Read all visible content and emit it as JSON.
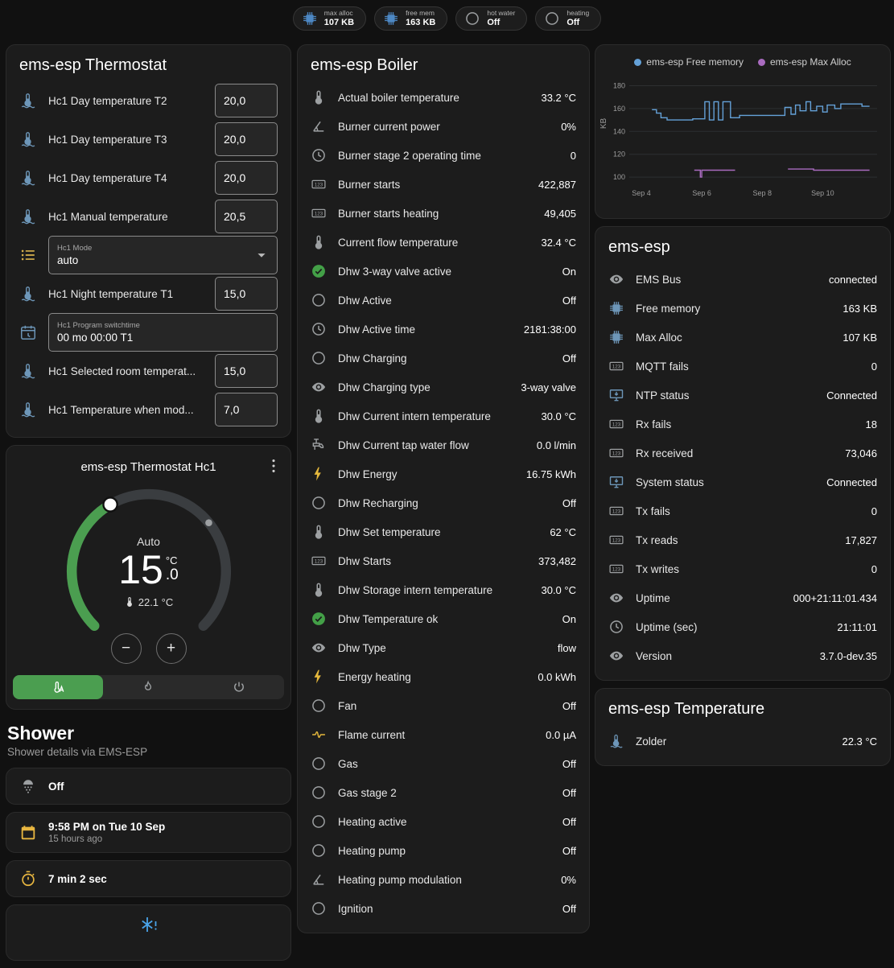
{
  "header": {
    "badges": [
      {
        "icon": "chip-icon",
        "icon_color": "#4d88c4",
        "label": "max alloc",
        "value": "107 KB"
      },
      {
        "icon": "chip-icon",
        "icon_color": "#4d88c4",
        "label": "free mem",
        "value": "163 KB"
      },
      {
        "icon": "circle-outline-icon",
        "icon_color": "#9da0a2",
        "label": "hot water",
        "value": "Off"
      },
      {
        "icon": "circle-outline-icon",
        "icon_color": "#9da0a2",
        "label": "heating",
        "value": "Off"
      }
    ]
  },
  "thermostat": {
    "title": "ems-esp Thermostat",
    "rows": [
      {
        "control": "input",
        "icon": "thermometer-water-icon",
        "icon_color": "#6d96b8",
        "label": "Hc1 Day temperature T2",
        "value": "20,0"
      },
      {
        "control": "input",
        "icon": "thermometer-water-icon",
        "icon_color": "#6d96b8",
        "label": "Hc1 Day temperature T3",
        "value": "20,0"
      },
      {
        "control": "input",
        "icon": "thermometer-water-icon",
        "icon_color": "#6d96b8",
        "label": "Hc1 Day temperature T4",
        "value": "20,0"
      },
      {
        "control": "input",
        "icon": "thermometer-water-icon",
        "icon_color": "#6d96b8",
        "label": "Hc1 Manual temperature",
        "value": "20,5"
      },
      {
        "control": "select",
        "icon": "list-icon",
        "icon_color": "#d8b14c",
        "label": "Hc1 Mode",
        "value": "auto"
      },
      {
        "control": "input",
        "icon": "thermometer-water-icon",
        "icon_color": "#6d96b8",
        "label": "Hc1 Night temperature T1",
        "value": "15,0"
      },
      {
        "control": "text",
        "icon": "program-icon",
        "icon_color": "#6d96b8",
        "label": "Hc1 Program switchtime",
        "value": "00 mo 00:00 T1"
      },
      {
        "control": "input",
        "icon": "thermometer-water-icon",
        "icon_color": "#6d96b8",
        "label": "Hc1 Selected room temperat...",
        "value": "15,0"
      },
      {
        "control": "input",
        "icon": "thermometer-water-icon",
        "icon_color": "#6d96b8",
        "label": "Hc1 Temperature when mod...",
        "value": "7,0"
      }
    ]
  },
  "thermostat_hc1": {
    "title": "ems-esp Thermostat Hc1",
    "mode": "Auto",
    "temp_int": "15",
    "temp_dec": ".0",
    "temp_unit": "°C",
    "current": "22.1 °C"
  },
  "shower": {
    "heading": "Shower",
    "subtitle": "Shower details via EMS-ESP",
    "state": "Off",
    "last_time": "9:58 PM on Tue 10 Sep",
    "last_time_relative": "15 hours ago",
    "duration": "7 min 2 sec"
  },
  "boiler": {
    "title": "ems-esp Boiler",
    "rows": [
      {
        "icon": "thermometer-icon",
        "label": "Actual boiler temperature",
        "value": "33.2 °C"
      },
      {
        "icon": "angle-icon",
        "label": "Burner current power",
        "value": "0%"
      },
      {
        "icon": "clock-icon",
        "label": "Burner stage 2 operating time",
        "value": "0"
      },
      {
        "icon": "counter-icon",
        "label": "Burner starts",
        "value": "422,887"
      },
      {
        "icon": "counter-icon",
        "label": "Burner starts heating",
        "value": "49,405"
      },
      {
        "icon": "thermometer-icon",
        "label": "Current flow temperature",
        "value": "32.4 °C"
      },
      {
        "icon": "check-circle-icon",
        "icon_color": "#43a047",
        "label": "Dhw 3-way valve active",
        "value": "On"
      },
      {
        "icon": "circle-outline-icon",
        "label": "Dhw Active",
        "value": "Off"
      },
      {
        "icon": "clock-icon",
        "label": "Dhw Active time",
        "value": "2181:38:00"
      },
      {
        "icon": "circle-outline-icon",
        "label": "Dhw Charging",
        "value": "Off"
      },
      {
        "icon": "eye-icon",
        "label": "Dhw Charging type",
        "value": "3-way valve"
      },
      {
        "icon": "thermometer-icon",
        "label": "Dhw Current intern temperature",
        "value": "30.0 °C"
      },
      {
        "icon": "water-pump-icon",
        "label": "Dhw Current tap water flow",
        "value": "0.0 l/min"
      },
      {
        "icon": "flash-icon",
        "icon_color": "#e5b83c",
        "label": "Dhw Energy",
        "value": "16.75 kWh"
      },
      {
        "icon": "circle-outline-icon",
        "label": "Dhw Recharging",
        "value": "Off"
      },
      {
        "icon": "thermometer-icon",
        "label": "Dhw Set temperature",
        "value": "62 °C"
      },
      {
        "icon": "counter-icon",
        "label": "Dhw Starts",
        "value": "373,482"
      },
      {
        "icon": "thermometer-icon",
        "label": "Dhw Storage intern temperature",
        "value": "30.0 °C"
      },
      {
        "icon": "check-circle-icon",
        "icon_color": "#43a047",
        "label": "Dhw Temperature ok",
        "value": "On"
      },
      {
        "icon": "eye-icon",
        "label": "Dhw Type",
        "value": "flow"
      },
      {
        "icon": "flash-icon",
        "icon_color": "#e5b83c",
        "label": "Energy heating",
        "value": "0.0 kWh"
      },
      {
        "icon": "circle-outline-icon",
        "label": "Fan",
        "value": "Off"
      },
      {
        "icon": "current-icon",
        "icon_color": "#e5b83c",
        "label": "Flame current",
        "value": "0.0 µA"
      },
      {
        "icon": "circle-outline-icon",
        "label": "Gas",
        "value": "Off"
      },
      {
        "icon": "circle-outline-icon",
        "label": "Gas stage 2",
        "value": "Off"
      },
      {
        "icon": "circle-outline-icon",
        "label": "Heating active",
        "value": "Off"
      },
      {
        "icon": "circle-outline-icon",
        "label": "Heating pump",
        "value": "Off"
      },
      {
        "icon": "angle-icon",
        "label": "Heating pump modulation",
        "value": "0%"
      },
      {
        "icon": "circle-outline-icon",
        "label": "Ignition",
        "value": "Off"
      }
    ]
  },
  "ems": {
    "title": "ems-esp",
    "rows": [
      {
        "icon": "eye-icon",
        "label": "EMS Bus",
        "value": "connected"
      },
      {
        "icon": "chip-icon",
        "icon_color": "#6d96b8",
        "label": "Free memory",
        "value": "163 KB"
      },
      {
        "icon": "chip-icon",
        "icon_color": "#6d96b8",
        "label": "Max Alloc",
        "value": "107 KB"
      },
      {
        "icon": "counter-icon",
        "label": "MQTT fails",
        "value": "0"
      },
      {
        "icon": "monitor-icon",
        "icon_color": "#6d96b8",
        "label": "NTP status",
        "value": "Connected"
      },
      {
        "icon": "counter-icon",
        "label": "Rx fails",
        "value": "18"
      },
      {
        "icon": "counter-icon",
        "label": "Rx received",
        "value": "73,046"
      },
      {
        "icon": "monitor-icon",
        "icon_color": "#6d96b8",
        "label": "System status",
        "value": "Connected"
      },
      {
        "icon": "counter-icon",
        "label": "Tx fails",
        "value": "0"
      },
      {
        "icon": "counter-icon",
        "label": "Tx reads",
        "value": "17,827"
      },
      {
        "icon": "counter-icon",
        "label": "Tx writes",
        "value": "0"
      },
      {
        "icon": "eye-icon",
        "label": "Uptime",
        "value": "000+21:11:01.434"
      },
      {
        "icon": "clock-icon",
        "label": "Uptime (sec)",
        "value": "21:11:01"
      },
      {
        "icon": "eye-icon",
        "label": "Version",
        "value": "3.7.0-dev.35"
      }
    ]
  },
  "temperature": {
    "title": "ems-esp Temperature",
    "rows": [
      {
        "icon": "thermometer-water-icon",
        "icon_color": "#6d96b8",
        "label": "Zolder",
        "value": "22.3 °C"
      }
    ]
  },
  "chart_data": {
    "type": "line",
    "title": "",
    "xlabel": "",
    "ylabel": "KB",
    "grid": true,
    "legend_position": "top",
    "xlim": [
      3.6,
      11.8
    ],
    "ylim": [
      93,
      186
    ],
    "yticks": [
      100,
      120,
      140,
      160,
      180
    ],
    "xticks": [
      {
        "v": 4,
        "label": "Sep 4"
      },
      {
        "v": 6,
        "label": "Sep 6"
      },
      {
        "v": 8,
        "label": "Sep 8"
      },
      {
        "v": 10,
        "label": "Sep 10"
      }
    ],
    "series": [
      {
        "name": "ems-esp Free memory",
        "color": "#64a1d8",
        "segments": [
          [
            [
              4.35,
              159
            ],
            [
              4.5,
              159
            ],
            [
              4.5,
              156
            ],
            [
              4.65,
              156
            ],
            [
              4.65,
              152
            ],
            [
              4.85,
              152
            ],
            [
              4.85,
              150
            ],
            [
              5.7,
              150
            ],
            [
              5.7,
              151
            ],
            [
              6.1,
              151
            ],
            [
              6.1,
              166
            ],
            [
              6.25,
              166
            ],
            [
              6.25,
              150
            ],
            [
              6.4,
              150
            ],
            [
              6.4,
              166
            ],
            [
              6.55,
              166
            ],
            [
              6.55,
              150
            ],
            [
              6.7,
              150
            ],
            [
              6.7,
              166
            ],
            [
              6.95,
              166
            ],
            [
              6.95,
              152
            ],
            [
              7.25,
              152
            ],
            [
              7.25,
              154
            ],
            [
              8.75,
              154
            ],
            [
              8.75,
              161
            ],
            [
              8.95,
              161
            ],
            [
              8.95,
              155
            ],
            [
              9.1,
              155
            ],
            [
              9.1,
              163
            ],
            [
              9.25,
              163
            ],
            [
              9.25,
              158
            ],
            [
              9.45,
              158
            ],
            [
              9.45,
              166
            ],
            [
              9.6,
              166
            ],
            [
              9.6,
              158
            ],
            [
              9.8,
              158
            ],
            [
              9.8,
              162
            ],
            [
              10.0,
              162
            ],
            [
              10.0,
              157
            ],
            [
              10.15,
              157
            ],
            [
              10.15,
              163
            ],
            [
              10.4,
              163
            ],
            [
              10.4,
              160
            ],
            [
              10.6,
              160
            ],
            [
              10.6,
              164
            ],
            [
              11.3,
              164
            ],
            [
              11.3,
              162
            ],
            [
              11.55,
              162
            ]
          ]
        ]
      },
      {
        "name": "ems-esp Max Alloc",
        "color": "#a96bbf",
        "segments": [
          [
            [
              5.75,
              106
            ],
            [
              5.95,
              106
            ],
            [
              5.95,
              100
            ],
            [
              6.0,
              100
            ],
            [
              6.0,
              106
            ],
            [
              7.1,
              106
            ]
          ],
          [
            [
              8.85,
              107
            ],
            [
              9.7,
              107
            ],
            [
              9.7,
              106
            ],
            [
              11.55,
              106
            ]
          ]
        ]
      }
    ]
  }
}
